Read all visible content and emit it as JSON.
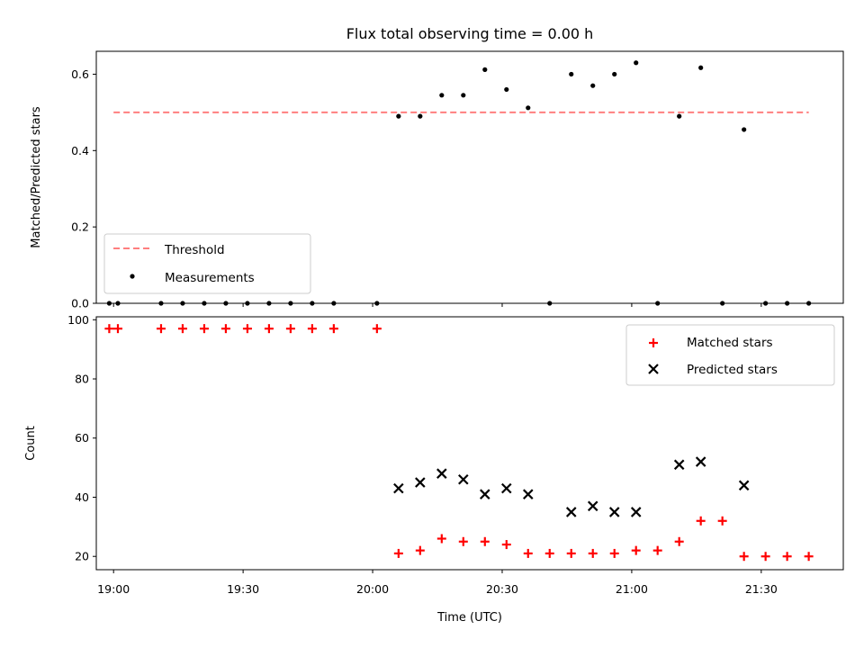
{
  "chart_data": [
    {
      "type": "scatter",
      "title": "Flux total observing time = 0.00 h",
      "xlabel": "",
      "ylabel": "Matched/Predicted stars",
      "xlim": [
        "18:56",
        "21:49"
      ],
      "ylim": [
        0,
        0.66
      ],
      "yticks": [
        "0.0",
        "0.2",
        "0.4",
        "0.6"
      ],
      "grid": false,
      "legend": {
        "position": "lower-left",
        "entries": [
          "Threshold",
          "Measurements"
        ]
      },
      "threshold": {
        "name": "Threshold",
        "value": 0.5,
        "x_range": [
          "19:00",
          "21:41"
        ],
        "color": "#ff7f7f"
      },
      "series": [
        {
          "name": "Measurements",
          "color": "#000000",
          "points": [
            [
              "18:59",
              0
            ],
            [
              "19:01",
              0
            ],
            [
              "19:11",
              0
            ],
            [
              "19:16",
              0
            ],
            [
              "19:21",
              0
            ],
            [
              "19:26",
              0
            ],
            [
              "19:31",
              0
            ],
            [
              "19:36",
              0
            ],
            [
              "19:41",
              0
            ],
            [
              "19:46",
              0
            ],
            [
              "19:51",
              0
            ],
            [
              "20:01",
              0
            ],
            [
              "20:06",
              0.49
            ],
            [
              "20:11",
              0.49
            ],
            [
              "20:16",
              0.545
            ],
            [
              "20:21",
              0.545
            ],
            [
              "20:26",
              0.612
            ],
            [
              "20:31",
              0.56
            ],
            [
              "20:36",
              0.512
            ],
            [
              "20:41",
              0
            ],
            [
              "20:46",
              0.6
            ],
            [
              "20:51",
              0.57
            ],
            [
              "20:56",
              0.6
            ],
            [
              "21:01",
              0.63
            ],
            [
              "21:06",
              0
            ],
            [
              "21:11",
              0.49
            ],
            [
              "21:16",
              0.617
            ],
            [
              "21:21",
              0
            ],
            [
              "21:26",
              0.455
            ],
            [
              "21:31",
              0
            ],
            [
              "21:36",
              0
            ],
            [
              "21:41",
              0
            ]
          ]
        }
      ]
    },
    {
      "type": "scatter",
      "title": "",
      "xlabel": "Time (UTC)",
      "ylabel": "Count",
      "xlim": [
        "18:56",
        "21:49"
      ],
      "ylim": [
        15.5,
        101
      ],
      "xticks": [
        "19:00",
        "19:30",
        "20:00",
        "20:30",
        "21:00",
        "21:30"
      ],
      "yticks": [
        "20",
        "40",
        "60",
        "80",
        "100"
      ],
      "grid": false,
      "legend": {
        "position": "top-right",
        "entries": [
          "Matched stars",
          "Predicted stars"
        ]
      },
      "series": [
        {
          "name": "Matched stars",
          "marker": "plus",
          "color": "#ff0000",
          "points": [
            [
              "18:59",
              97
            ],
            [
              "19:01",
              97
            ],
            [
              "19:11",
              97
            ],
            [
              "19:16",
              97
            ],
            [
              "19:21",
              97
            ],
            [
              "19:26",
              97
            ],
            [
              "19:31",
              97
            ],
            [
              "19:36",
              97
            ],
            [
              "19:41",
              97
            ],
            [
              "19:46",
              97
            ],
            [
              "19:51",
              97
            ],
            [
              "20:01",
              97
            ],
            [
              "20:06",
              21
            ],
            [
              "20:11",
              22
            ],
            [
              "20:16",
              26
            ],
            [
              "20:21",
              25
            ],
            [
              "20:26",
              25
            ],
            [
              "20:31",
              24
            ],
            [
              "20:36",
              21
            ],
            [
              "20:41",
              21
            ],
            [
              "20:46",
              21
            ],
            [
              "20:51",
              21
            ],
            [
              "20:56",
              21
            ],
            [
              "21:01",
              22
            ],
            [
              "21:06",
              22
            ],
            [
              "21:11",
              25
            ],
            [
              "21:16",
              32
            ],
            [
              "21:21",
              32
            ],
            [
              "21:26",
              20
            ],
            [
              "21:31",
              20
            ],
            [
              "21:36",
              20
            ],
            [
              "21:41",
              20
            ]
          ]
        },
        {
          "name": "Predicted stars",
          "marker": "x",
          "color": "#000000",
          "points": [
            [
              "20:06",
              43
            ],
            [
              "20:11",
              45
            ],
            [
              "20:16",
              48
            ],
            [
              "20:21",
              46
            ],
            [
              "20:26",
              41
            ],
            [
              "20:31",
              43
            ],
            [
              "20:36",
              41
            ],
            [
              "20:46",
              35
            ],
            [
              "20:51",
              37
            ],
            [
              "20:56",
              35
            ],
            [
              "21:01",
              35
            ],
            [
              "21:11",
              51
            ],
            [
              "21:16",
              52
            ],
            [
              "21:26",
              44
            ]
          ]
        }
      ]
    }
  ]
}
